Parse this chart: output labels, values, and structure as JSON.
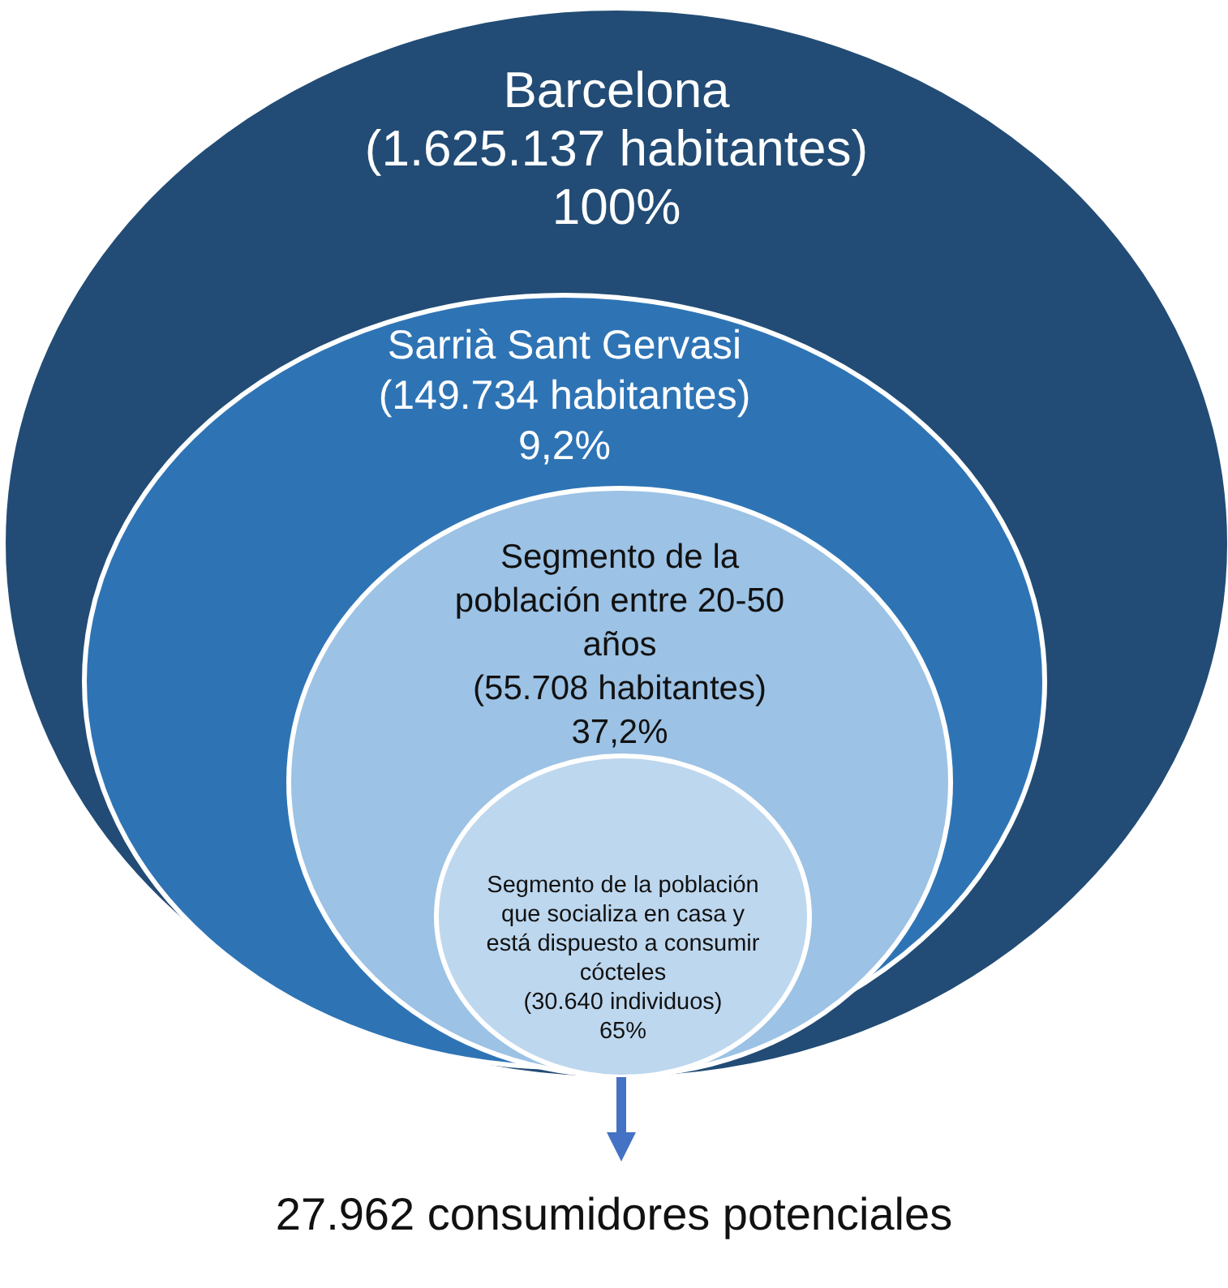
{
  "chart_data": {
    "type": "other",
    "categories": [
      "Barcelona",
      "Sarrià Sant Gervasi",
      "Segmento de la población entre 20-50 años",
      "Segmento de la población que socializa en casa y está dispuesto a consumir cócteles"
    ],
    "series": [
      {
        "colors": [
          "#224c75",
          "#2e74b5",
          "#9cc2e5",
          "#bdd7ee"
        ],
        "values": [
          1625137,
          149734,
          55708,
          30640
        ],
        "value_labels": [
          "(1.625.137 habitantes)",
          "(149.734 habitantes)",
          "(55.708 habitantes)",
          "(30.640 individuos)"
        ]
      },
      {
        "values": [
          100,
          9.2,
          37.2,
          65
        ],
        "value_labels": [
          "100%",
          "9,2%",
          "37,2%",
          "65%"
        ]
      }
    ],
    "annotations": [
      "27.962 consumidores potenciales"
    ]
  }
}
